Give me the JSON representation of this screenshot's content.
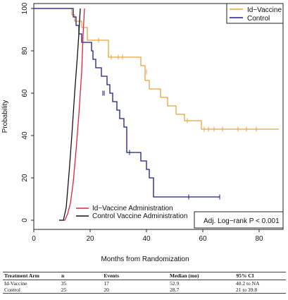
{
  "chart_data": {
    "type": "line",
    "title": "",
    "xlabel": "Months from Randomization",
    "ylabel": "Probability",
    "xlim": [
      0,
      90
    ],
    "ylim": [
      0,
      100
    ],
    "x_ticks": [
      0,
      20,
      40,
      60,
      80
    ],
    "y_ticks": [
      0,
      20,
      40,
      60,
      80,
      100
    ],
    "grid": false,
    "legend": {
      "placement": "top-right"
    },
    "series": [
      {
        "name": "Id−Vaccine",
        "color": "#e8a33c",
        "style": "step",
        "x": [
          0,
          13,
          13.5,
          14.5,
          17,
          19,
          25,
          26.5,
          33,
          38,
          39.5,
          41,
          45,
          47.5,
          50.5,
          53.5,
          59.5,
          87
        ],
        "y": [
          100,
          100,
          97,
          94,
          91,
          85,
          85,
          77,
          77,
          73,
          66,
          62,
          58,
          54,
          50,
          47,
          43,
          43
        ],
        "censor_x": [
          23,
          27.5,
          30,
          31.5,
          40,
          54.5,
          60.5,
          62,
          64,
          67,
          72.5,
          75.5,
          79
        ],
        "censor_y": [
          85,
          77,
          77,
          77,
          70,
          47,
          43,
          43,
          43,
          43,
          43,
          43,
          43
        ]
      },
      {
        "name": "Control",
        "color": "#1a1a8c",
        "style": "step",
        "x": [
          0,
          13,
          14,
          15,
          16,
          17,
          20,
          20.5,
          21,
          22,
          24,
          26,
          27,
          28,
          29.5,
          30.5,
          32,
          33,
          38,
          40,
          41,
          42.5,
          66
        ],
        "y": [
          100,
          100,
          96,
          92,
          88,
          84,
          84,
          80,
          76,
          72,
          68,
          64,
          60,
          56,
          52,
          48,
          44,
          32,
          28,
          24,
          20,
          11,
          11
        ],
        "censor_x": [
          24.5,
          25,
          34,
          55,
          66
        ],
        "censor_y": [
          60,
          60,
          32,
          11,
          11
        ]
      },
      {
        "name": "Id−Vaccine Administration",
        "color": "#e0243c",
        "style": "cumulative",
        "x": [
          9,
          11,
          12,
          13,
          14,
          15,
          16,
          17,
          17.5,
          18
        ],
        "y": [
          0,
          0,
          3,
          8,
          18,
          33,
          50,
          70,
          88,
          100
        ]
      },
      {
        "name": "Control Vaccine Administration",
        "color": "#111111",
        "style": "cumulative",
        "x": [
          9,
          10.5,
          11.5,
          12.5,
          13.5,
          14.5,
          15.5,
          16,
          16.5
        ],
        "y": [
          0,
          0,
          6,
          22,
          40,
          60,
          78,
          88,
          100
        ]
      }
    ],
    "annotation": "Adj. Log−rank P < 0.001"
  },
  "summary_table": {
    "headers": [
      "Treatment Arm",
      "n",
      "Events",
      "Median (mo)",
      "95% CI"
    ],
    "rows": [
      [
        "Id-Vaccine",
        "35",
        "17",
        "52.9",
        "40.2 to NA"
      ],
      [
        "Control",
        "25",
        "20",
        "28.7",
        "21 to 39.8"
      ]
    ]
  }
}
